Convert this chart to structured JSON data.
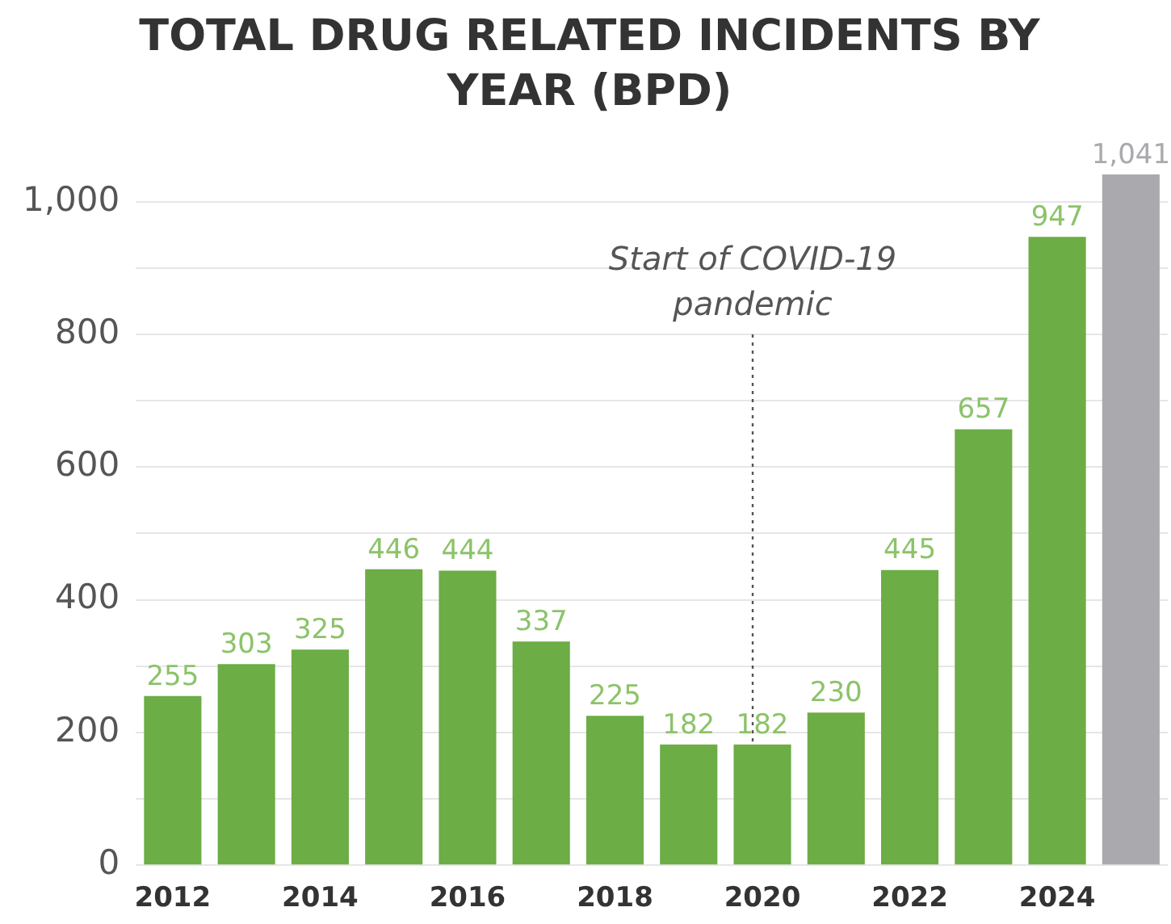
{
  "chart_data": {
    "type": "bar",
    "title": "TOTAL DRUG RELATED INCIDENTS BY YEAR (BPD)",
    "categories": [
      "2012",
      null,
      "2014",
      null,
      "2016",
      null,
      "2018",
      null,
      "2020",
      null,
      "2022",
      null,
      "2024",
      null
    ],
    "values": [
      255,
      303,
      325,
      446,
      444,
      337,
      225,
      182,
      182,
      230,
      445,
      657,
      947,
      1041
    ],
    "colors": [
      "#6cad45",
      "#6cad45",
      "#6cad45",
      "#6cad45",
      "#6cad45",
      "#6cad45",
      "#6cad45",
      "#6cad45",
      "#6cad45",
      "#6cad45",
      "#6cad45",
      "#6cad45",
      "#6cad45",
      "#a9a9ae"
    ],
    "value_labels": [
      "255",
      "303",
      "325",
      "446",
      "444",
      "337",
      "225",
      "182",
      "182",
      "230",
      "445",
      "657",
      "947",
      "1,041"
    ],
    "ylim": [
      0,
      1041
    ],
    "yticks": [
      0,
      {
        "value": 100,
        "label": null
      },
      {
        "value": 200,
        "label": "200"
      },
      {
        "value": 300,
        "label": null
      },
      {
        "value": 400,
        "label": "400"
      },
      {
        "value": 500,
        "label": null
      },
      {
        "value": 600,
        "label": "600"
      },
      {
        "value": 700,
        "label": null
      },
      {
        "value": 800,
        "label": "800"
      },
      {
        "value": 900,
        "label": null
      },
      {
        "value": 1000,
        "label": "1,000"
      }
    ],
    "grid": "y",
    "ref_lines": [
      {
        "axis": "x",
        "value": "2020",
        "label": "Start of COVID-19\npandemic",
        "line_style": "dotted",
        "color": "#555555"
      }
    ],
    "legend": false
  }
}
